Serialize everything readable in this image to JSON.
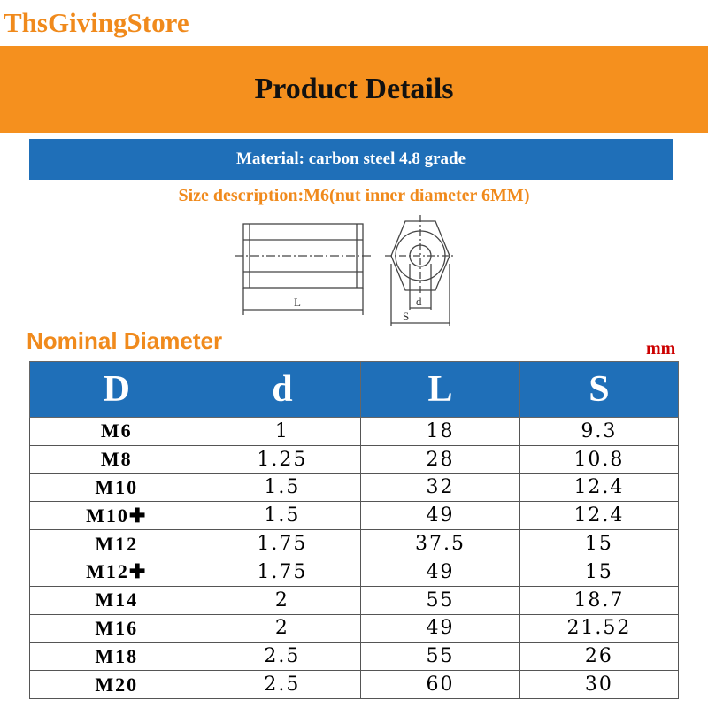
{
  "header": {
    "store": "ThsGivingStore",
    "banner": "Product Details"
  },
  "material": "Material: carbon steel 4.8 grade",
  "size_description": "Size description:M6(nut inner diameter 6MM)",
  "drawing": {
    "labels": [
      "L",
      "d",
      "S"
    ]
  },
  "section_title": "Nominal Diameter",
  "unit": "mm",
  "table": {
    "columns": [
      "D",
      "d",
      "L",
      "S"
    ],
    "rows": [
      [
        "M6",
        "1",
        "18",
        "9.3"
      ],
      [
        "M8",
        "1.25",
        "28",
        "10.8"
      ],
      [
        "M10",
        "1.5",
        "32",
        "12.4"
      ],
      [
        "M10✚",
        "1.5",
        "49",
        "12.4"
      ],
      [
        "M12",
        "1.75",
        "37.5",
        "15"
      ],
      [
        "M12✚",
        "1.75",
        "49",
        "15"
      ],
      [
        "M14",
        "2",
        "55",
        "18.7"
      ],
      [
        "M16",
        "2",
        "49",
        "21.52"
      ],
      [
        "M18",
        "2.5",
        "55",
        "26"
      ],
      [
        "M20",
        "2.5",
        "60",
        "30"
      ]
    ]
  }
}
